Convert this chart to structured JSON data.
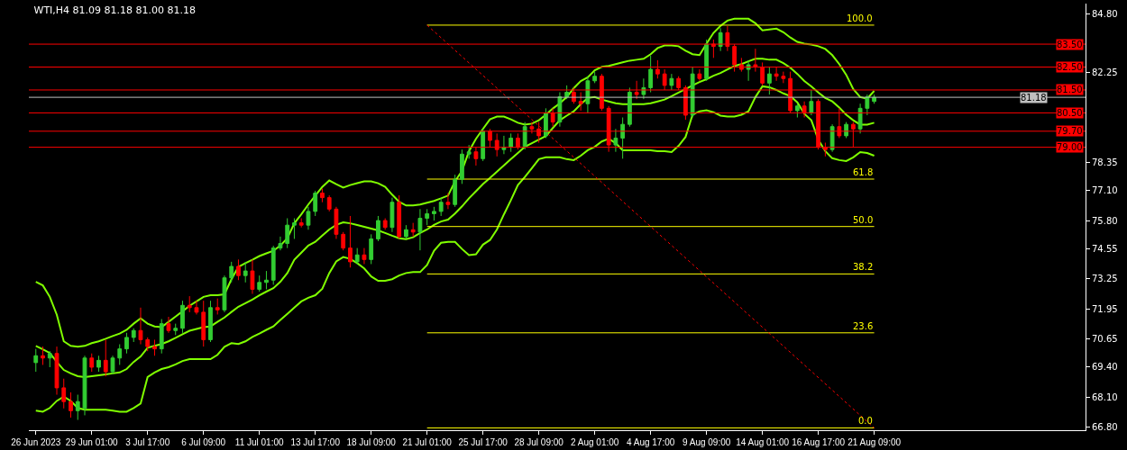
{
  "chart_data": {
    "type": "candlestick",
    "title": "WTI,H4 81.09 81.18 81.00 81.18",
    "categories": [
      "26 Jun 2023",
      null,
      null,
      null,
      null,
      null,
      null,
      null,
      "29 Jun 01:00",
      null,
      null,
      null,
      null,
      null,
      null,
      null,
      "3 Jul 17:00",
      null,
      null,
      null,
      null,
      null,
      null,
      null,
      "6 Jul 09:00",
      null,
      null,
      null,
      null,
      null,
      null,
      null,
      "11 Jul 01:00",
      null,
      null,
      null,
      null,
      null,
      null,
      null,
      "13 Jul 17:00",
      null,
      null,
      null,
      null,
      null,
      null,
      null,
      "18 Jul 09:00",
      null,
      null,
      null,
      null,
      null,
      null,
      null,
      "21 Jul 01:00",
      null,
      null,
      null,
      null,
      null,
      null,
      null,
      "25 Jul 17:00",
      null,
      null,
      null,
      null,
      null,
      null,
      null,
      "28 Jul 09:00",
      null,
      null,
      null,
      null,
      null,
      null,
      null,
      "2 Aug 01:00",
      null,
      null,
      null,
      null,
      null,
      null,
      null,
      "4 Aug 17:00",
      null,
      null,
      null,
      null,
      null,
      null,
      null,
      "9 Aug 09:00",
      null,
      null,
      null,
      null,
      null,
      null,
      null,
      "14 Aug 01:00",
      null,
      null,
      null,
      null,
      null,
      null,
      null,
      "16 Aug 17:00",
      null,
      null,
      null,
      null,
      null,
      null,
      null,
      "21 Aug 09:00"
    ],
    "ohlc": [
      [
        69.6,
        70.2,
        69.2,
        69.9
      ],
      [
        69.9,
        70.3,
        69.5,
        69.8
      ],
      [
        69.8,
        70.1,
        69.4,
        70.0
      ],
      [
        70.0,
        70.3,
        68.2,
        68.5
      ],
      [
        68.5,
        68.9,
        67.6,
        67.9
      ],
      [
        67.9,
        68.3,
        67.2,
        67.5
      ],
      [
        67.5,
        68.2,
        67.1,
        67.9
      ],
      [
        67.6,
        69.9,
        67.3,
        69.8
      ],
      [
        69.8,
        70.0,
        69.2,
        69.4
      ],
      [
        69.4,
        69.9,
        69.2,
        69.7
      ],
      [
        69.7,
        70.6,
        69.0,
        69.2
      ],
      [
        69.2,
        69.9,
        69.1,
        69.8
      ],
      [
        69.8,
        70.4,
        69.5,
        70.2
      ],
      [
        70.2,
        70.9,
        70.0,
        70.7
      ],
      [
        70.7,
        71.1,
        70.5,
        71.0
      ],
      [
        71.0,
        72.0,
        70.4,
        70.6
      ],
      [
        70.6,
        70.7,
        70.1,
        70.3
      ],
      [
        70.3,
        70.6,
        69.9,
        70.2
      ],
      [
        70.2,
        71.5,
        70.0,
        71.3
      ],
      [
        71.3,
        71.6,
        70.9,
        71.0
      ],
      [
        71.0,
        71.3,
        70.8,
        71.1
      ],
      [
        71.1,
        72.3,
        70.9,
        72.1
      ],
      [
        72.1,
        72.5,
        71.8,
        72.0
      ],
      [
        72.0,
        72.3,
        71.7,
        71.8
      ],
      [
        71.8,
        72.3,
        70.3,
        70.6
      ],
      [
        70.6,
        72.3,
        70.5,
        72.0
      ],
      [
        72.0,
        72.4,
        71.7,
        71.9
      ],
      [
        71.9,
        73.4,
        71.8,
        73.3
      ],
      [
        73.3,
        74.0,
        73.1,
        73.8
      ],
      [
        73.8,
        74.1,
        73.2,
        73.4
      ],
      [
        73.4,
        74.0,
        73.1,
        73.6
      ],
      [
        73.6,
        74.1,
        72.6,
        72.8
      ],
      [
        72.8,
        73.4,
        72.7,
        73.1
      ],
      [
        73.1,
        73.6,
        72.8,
        73.2
      ],
      [
        73.2,
        74.7,
        73.0,
        74.6
      ],
      [
        74.6,
        75.1,
        74.5,
        74.8
      ],
      [
        74.8,
        75.9,
        74.6,
        75.6
      ],
      [
        75.6,
        75.9,
        75.0,
        75.7
      ],
      [
        75.7,
        75.9,
        75.5,
        75.6
      ],
      [
        75.6,
        76.4,
        75.4,
        76.2
      ],
      [
        76.2,
        77.1,
        76.0,
        77.0
      ],
      [
        77.0,
        77.2,
        76.6,
        76.8
      ],
      [
        76.8,
        76.9,
        76.2,
        76.3
      ],
      [
        76.3,
        76.4,
        75.0,
        75.2
      ],
      [
        75.2,
        75.3,
        74.5,
        74.6
      ],
      [
        74.6,
        76.0,
        73.75,
        74.0
      ],
      [
        74.0,
        74.6,
        73.9,
        74.3
      ],
      [
        74.3,
        74.6,
        73.9,
        74.1
      ],
      [
        74.1,
        75.2,
        73.9,
        75.0
      ],
      [
        75.0,
        76.0,
        74.9,
        75.8
      ],
      [
        75.8,
        75.9,
        75.4,
        75.5
      ],
      [
        75.5,
        76.8,
        75.3,
        76.6
      ],
      [
        76.6,
        76.9,
        75.0,
        75.1
      ],
      [
        75.1,
        75.6,
        75.0,
        75.4
      ],
      [
        75.4,
        75.7,
        75.1,
        75.3
      ],
      [
        75.3,
        76.3,
        74.5,
        75.9
      ],
      [
        75.9,
        76.3,
        75.6,
        76.1
      ],
      [
        76.1,
        76.4,
        75.8,
        76.2
      ],
      [
        76.2,
        76.8,
        76.0,
        76.6
      ],
      [
        76.6,
        77.0,
        76.3,
        76.5
      ],
      [
        76.5,
        77.8,
        76.4,
        77.6
      ],
      [
        77.6,
        78.9,
        77.4,
        78.7
      ],
      [
        78.7,
        79.1,
        78.5,
        78.8
      ],
      [
        78.8,
        79.0,
        78.2,
        78.5
      ],
      [
        78.5,
        79.8,
        78.4,
        79.7
      ],
      [
        79.7,
        79.8,
        79.0,
        79.3
      ],
      [
        79.3,
        79.6,
        78.6,
        78.9
      ],
      [
        78.9,
        79.5,
        78.7,
        79.0
      ],
      [
        79.0,
        79.6,
        78.8,
        79.4
      ],
      [
        79.4,
        79.6,
        78.9,
        79.0
      ],
      [
        79.0,
        80.1,
        78.9,
        79.9
      ],
      [
        79.9,
        80.1,
        79.6,
        79.8
      ],
      [
        79.8,
        80.1,
        79.2,
        79.5
      ],
      [
        79.5,
        80.7,
        79.4,
        80.5
      ],
      [
        80.5,
        80.7,
        79.9,
        80.1
      ],
      [
        80.1,
        81.4,
        79.9,
        81.2
      ],
      [
        81.2,
        81.7,
        81.1,
        81.4
      ],
      [
        81.4,
        81.6,
        80.9,
        81.0
      ],
      [
        81.0,
        81.4,
        80.6,
        80.9
      ],
      [
        80.9,
        82.1,
        80.5,
        81.9
      ],
      [
        81.9,
        82.3,
        81.8,
        82.1
      ],
      [
        82.1,
        82.2,
        80.6,
        80.7
      ],
      [
        80.7,
        80.8,
        78.8,
        79.1
      ],
      [
        79.1,
        79.8,
        78.8,
        79.4
      ],
      [
        79.4,
        80.3,
        78.5,
        80.0
      ],
      [
        80.0,
        81.6,
        79.9,
        81.4
      ],
      [
        81.4,
        81.9,
        81.1,
        81.3
      ],
      [
        81.3,
        82.0,
        81.1,
        81.6
      ],
      [
        81.6,
        83.0,
        81.4,
        82.4
      ],
      [
        82.4,
        82.8,
        82.0,
        82.2
      ],
      [
        82.2,
        82.4,
        81.5,
        81.7
      ],
      [
        81.7,
        82.2,
        81.5,
        82.0
      ],
      [
        82.0,
        82.1,
        81.5,
        81.6
      ],
      [
        81.6,
        81.7,
        80.2,
        80.4
      ],
      [
        80.4,
        82.5,
        80.3,
        82.2
      ],
      [
        82.2,
        82.4,
        81.9,
        82.0
      ],
      [
        82.0,
        83.7,
        81.9,
        83.5
      ],
      [
        83.5,
        83.7,
        82.9,
        83.4
      ],
      [
        83.4,
        84.2,
        83.2,
        84.0
      ],
      [
        84.0,
        84.3,
        83.2,
        83.4
      ],
      [
        83.4,
        83.5,
        82.3,
        82.6
      ],
      [
        82.6,
        82.9,
        82.3,
        82.4
      ],
      [
        82.4,
        82.8,
        81.9,
        82.6
      ],
      [
        82.6,
        83.3,
        82.3,
        82.5
      ],
      [
        82.5,
        82.7,
        81.7,
        81.8
      ],
      [
        81.8,
        82.5,
        81.3,
        82.2
      ],
      [
        82.2,
        82.5,
        81.9,
        82.1
      ],
      [
        82.1,
        82.3,
        81.8,
        82.0
      ],
      [
        82.0,
        82.3,
        80.5,
        80.6
      ],
      [
        80.6,
        80.9,
        80.3,
        80.8
      ],
      [
        80.8,
        81.0,
        80.3,
        80.5
      ],
      [
        80.5,
        81.5,
        80.4,
        81.0
      ],
      [
        81.0,
        81.1,
        78.9,
        79.0
      ],
      [
        79.0,
        79.2,
        78.6,
        78.9
      ],
      [
        78.9,
        80.0,
        78.8,
        79.9
      ],
      [
        79.9,
        80.7,
        79.4,
        79.5
      ],
      [
        79.5,
        80.1,
        79.4,
        80.0
      ],
      [
        80.0,
        80.1,
        79.0,
        79.8
      ],
      [
        79.8,
        80.9,
        79.6,
        80.7
      ],
      [
        80.7,
        81.3,
        80.4,
        81.2
      ],
      [
        81.0,
        81.3,
        80.9,
        81.18
      ]
    ],
    "colors": [
      "#32cd32",
      "#ff0000",
      "#32cd32",
      "#ff0000",
      "#ff0000",
      "#ff0000",
      "#32cd32",
      "#32cd32",
      "#ff0000",
      "#32cd32",
      "#ff0000",
      "#32cd32",
      "#32cd32",
      "#32cd32",
      "#32cd32",
      "#ff0000",
      "#ff0000",
      "#ff0000",
      "#32cd32",
      "#ff0000",
      "#32cd32",
      "#32cd32",
      "#ff0000",
      "#ff0000",
      "#ff0000",
      "#32cd32",
      "#ff0000",
      "#32cd32",
      "#32cd32",
      "#ff0000",
      "#32cd32",
      "#ff0000",
      "#32cd32",
      "#32cd32",
      "#32cd32",
      "#32cd32",
      "#32cd32",
      "#32cd32",
      "#ff0000",
      "#32cd32",
      "#32cd32",
      "#ff0000",
      "#ff0000",
      "#ff0000",
      "#ff0000",
      "#ff0000",
      "#32cd32",
      "#ff0000",
      "#32cd32",
      "#32cd32",
      "#ff0000",
      "#32cd32",
      "#ff0000",
      "#32cd32",
      "#ff0000",
      "#32cd32",
      "#32cd32",
      "#32cd32",
      "#32cd32",
      "#ff0000",
      "#32cd32",
      "#32cd32",
      "#32cd32",
      "#ff0000",
      "#32cd32",
      "#ff0000",
      "#ff0000",
      "#32cd32",
      "#32cd32",
      "#ff0000",
      "#32cd32",
      "#ff0000",
      "#ff0000",
      "#32cd32",
      "#ff0000",
      "#32cd32",
      "#32cd32",
      "#ff0000",
      "#ff0000",
      "#32cd32",
      "#32cd32",
      "#ff0000",
      "#ff0000",
      "#32cd32",
      "#32cd32",
      "#32cd32",
      "#ff0000",
      "#32cd32",
      "#32cd32",
      "#ff0000",
      "#ff0000",
      "#32cd32",
      "#ff0000",
      "#ff0000",
      "#32cd32",
      "#ff0000",
      "#32cd32",
      "#ff0000",
      "#32cd32",
      "#ff0000",
      "#ff0000",
      "#ff0000",
      "#32cd32",
      "#ff0000",
      "#ff0000",
      "#32cd32",
      "#ff0000",
      "#ff0000",
      "#ff0000",
      "#32cd32",
      "#ff0000",
      "#32cd32",
      "#ff0000",
      "#ff0000",
      "#32cd32",
      "#ff0000",
      "#32cd32",
      "#ff0000",
      "#32cd32",
      "#32cd32",
      "#32cd32"
    ],
    "series": [
      {
        "type": "line",
        "color": "#80ff00",
        "values": [
          73.13,
          72.97,
          72.47,
          71.69,
          70.53,
          70.33,
          70.29,
          70.33,
          70.45,
          70.53,
          70.64,
          70.76,
          70.87,
          71.03,
          71.3,
          71.53,
          71.3,
          71.18,
          71.15,
          71.38,
          71.61,
          71.84,
          72.08,
          72.27,
          72.47,
          72.54,
          72.54,
          72.58,
          73.24,
          73.78,
          73.94,
          74.09,
          74.25,
          74.37,
          74.48,
          74.71,
          75.03,
          75.68,
          76.07,
          76.5,
          76.89,
          77.27,
          77.55,
          77.39,
          77.24,
          77.35,
          77.43,
          77.51,
          77.51,
          77.43,
          77.27,
          76.93,
          76.62,
          76.46,
          76.46,
          76.5,
          76.58,
          76.66,
          76.77,
          76.89,
          77.51,
          77.97,
          78.83,
          79.37,
          79.8,
          80.22,
          80.34,
          80.34,
          80.22,
          80.07,
          79.99,
          80.03,
          80.18,
          80.42,
          80.69,
          80.92,
          81.19,
          81.58,
          81.89,
          82.05,
          82.36,
          82.51,
          82.55,
          82.63,
          82.71,
          82.78,
          82.82,
          82.86,
          83.06,
          83.33,
          83.44,
          83.44,
          83.41,
          83.21,
          83.06,
          83.02,
          83.52,
          83.99,
          84.3,
          84.53,
          84.61,
          84.61,
          84.61,
          84.41,
          84.1,
          84.14,
          84.18,
          84.02,
          83.79,
          83.6,
          83.52,
          83.48,
          83.41,
          83.29,
          83.02,
          82.63,
          82.16,
          81.54,
          81.19,
          81.12,
          81.46
        ]
      },
      {
        "type": "line",
        "color": "#80ff00",
        "values": [
          70.33,
          70.18,
          70.02,
          69.63,
          69.28,
          69.13,
          69.01,
          68.97,
          69.01,
          69.05,
          69.09,
          69.13,
          69.17,
          69.32,
          69.63,
          69.87,
          70.25,
          70.33,
          70.41,
          70.53,
          70.68,
          70.84,
          70.99,
          71.07,
          71.15,
          71.18,
          71.38,
          71.57,
          71.81,
          72.04,
          72.19,
          72.35,
          72.54,
          72.7,
          72.85,
          73.13,
          73.51,
          74.09,
          74.4,
          74.71,
          74.87,
          75.14,
          75.41,
          75.61,
          75.72,
          75.68,
          75.61,
          75.53,
          75.45,
          75.37,
          75.26,
          75.14,
          75.03,
          74.99,
          75.07,
          75.26,
          75.41,
          75.61,
          75.76,
          75.84,
          76.11,
          76.42,
          76.77,
          77.08,
          77.39,
          77.66,
          77.93,
          78.21,
          78.48,
          78.75,
          79.02,
          79.18,
          79.33,
          79.49,
          79.84,
          80.18,
          80.38,
          80.57,
          80.88,
          81.15,
          81.19,
          81.08,
          81.0,
          80.92,
          80.88,
          80.88,
          80.88,
          80.88,
          80.92,
          81.0,
          81.08,
          81.23,
          81.39,
          81.54,
          81.7,
          81.85,
          81.97,
          82.12,
          82.24,
          82.4,
          82.55,
          82.63,
          82.75,
          82.86,
          82.86,
          82.82,
          82.82,
          82.67,
          82.47,
          82.2,
          81.89,
          81.66,
          81.39,
          81.15,
          81.0,
          80.73,
          80.42,
          80.18,
          79.99,
          79.99,
          80.07
        ]
      },
      {
        "type": "line",
        "color": "#80ff00",
        "values": [
          67.5,
          67.46,
          67.62,
          67.93,
          68.12,
          67.93,
          67.62,
          67.54,
          67.54,
          67.54,
          67.54,
          67.5,
          67.46,
          67.46,
          67.62,
          67.81,
          68.97,
          69.17,
          69.32,
          69.4,
          69.52,
          69.67,
          69.75,
          69.75,
          69.75,
          69.75,
          69.94,
          70.29,
          70.45,
          70.41,
          70.53,
          70.72,
          70.87,
          71.03,
          71.18,
          71.46,
          71.73,
          72.0,
          72.27,
          72.43,
          72.54,
          72.82,
          73.51,
          74.02,
          74.21,
          74.13,
          73.94,
          73.71,
          73.36,
          73.17,
          73.17,
          73.24,
          73.4,
          73.51,
          73.55,
          73.55,
          73.86,
          74.48,
          74.83,
          74.87,
          74.87,
          74.56,
          74.29,
          74.33,
          74.75,
          74.95,
          75.41,
          76.07,
          76.69,
          77.35,
          77.7,
          78.09,
          78.48,
          78.56,
          78.56,
          78.56,
          78.48,
          78.44,
          78.63,
          78.87,
          79.02,
          79.25,
          79.37,
          79.18,
          78.87,
          78.87,
          78.87,
          78.87,
          78.87,
          78.83,
          78.83,
          78.79,
          79.06,
          79.45,
          80.42,
          80.57,
          80.61,
          80.53,
          80.38,
          80.34,
          80.34,
          80.42,
          80.57,
          81.19,
          81.66,
          81.62,
          81.5,
          81.35,
          81.23,
          80.96,
          80.46,
          80.18,
          79.33,
          78.83,
          78.52,
          78.44,
          78.4,
          78.56,
          78.79,
          78.75,
          78.63
        ]
      },
      {
        "type": "line",
        "name": "100.0",
        "color": "#ffff00",
        "x": [
          "21 Jul 01:00",
          "21 Aug 09:00"
        ],
        "values": [
          84.33,
          84.33
        ]
      },
      {
        "type": "line",
        "name": "61.8",
        "color": "#ffff00",
        "x": [
          "21 Jul 01:00",
          "21 Aug 09:00"
        ],
        "values": [
          77.61,
          77.61
        ]
      },
      {
        "type": "line",
        "name": "50.0",
        "color": "#ffff00",
        "x": [
          "21 Jul 01:00",
          "21 Aug 09:00"
        ],
        "values": [
          75.54,
          75.54
        ]
      },
      {
        "type": "line",
        "name": "38.2",
        "color": "#ffff00",
        "x": [
          "21 Jul 01:00",
          "21 Aug 09:00"
        ],
        "values": [
          73.47,
          73.47
        ]
      },
      {
        "type": "line",
        "name": "23.6",
        "color": "#ffff00",
        "x": [
          "21 Jul 01:00",
          "21 Aug 09:00"
        ],
        "values": [
          70.9,
          70.9
        ]
      },
      {
        "type": "line",
        "name": "0.0",
        "color": "#ffff00",
        "x": [
          "21 Jul 01:00",
          "21 Aug 09:00"
        ],
        "values": [
          66.75,
          66.75
        ]
      },
      {
        "type": "line",
        "color": "#ff0000",
        "line_style": "dotted",
        "x": [
          "21 Jul 01:00",
          "21 Aug 09:00"
        ],
        "values": [
          84.33,
          66.75
        ]
      }
    ],
    "ref_lines": [
      {
        "axis": "y",
        "value": 83.5,
        "label": "83.50",
        "color": "#ff0000"
      },
      {
        "axis": "y",
        "value": 82.5,
        "label": "82.50",
        "color": "#ff0000"
      },
      {
        "axis": "y",
        "value": 81.5,
        "label": "81.50",
        "color": "#ff0000"
      },
      {
        "axis": "y",
        "value": 81.18,
        "label": "81.18",
        "color": "#c0c0c0"
      },
      {
        "axis": "y",
        "value": 80.5,
        "label": "80.50",
        "color": "#ff0000"
      },
      {
        "axis": "y",
        "value": 79.7,
        "label": "79.70",
        "color": "#ff0000"
      },
      {
        "axis": "y",
        "value": 79.0,
        "label": "79.00",
        "color": "#ff0000"
      }
    ],
    "ylim": [
      66.65,
      85.27
    ],
    "yticks": [
      {
        "value": 84.8,
        "label": "84.80"
      },
      {
        "value": 82.25,
        "label": "82.25"
      },
      {
        "value": 78.35,
        "label": "78.35"
      },
      {
        "value": 77.1,
        "label": "77.10"
      },
      {
        "value": 75.8,
        "label": "75.80"
      },
      {
        "value": 74.55,
        "label": "74.55"
      },
      {
        "value": 73.25,
        "label": "73.25"
      },
      {
        "value": 71.95,
        "label": "71.95"
      },
      {
        "value": 70.65,
        "label": "70.65"
      },
      {
        "value": 69.4,
        "label": "69.40"
      },
      {
        "value": 68.1,
        "label": "68.10"
      },
      {
        "value": 66.8,
        "label": "66.80"
      }
    ]
  }
}
